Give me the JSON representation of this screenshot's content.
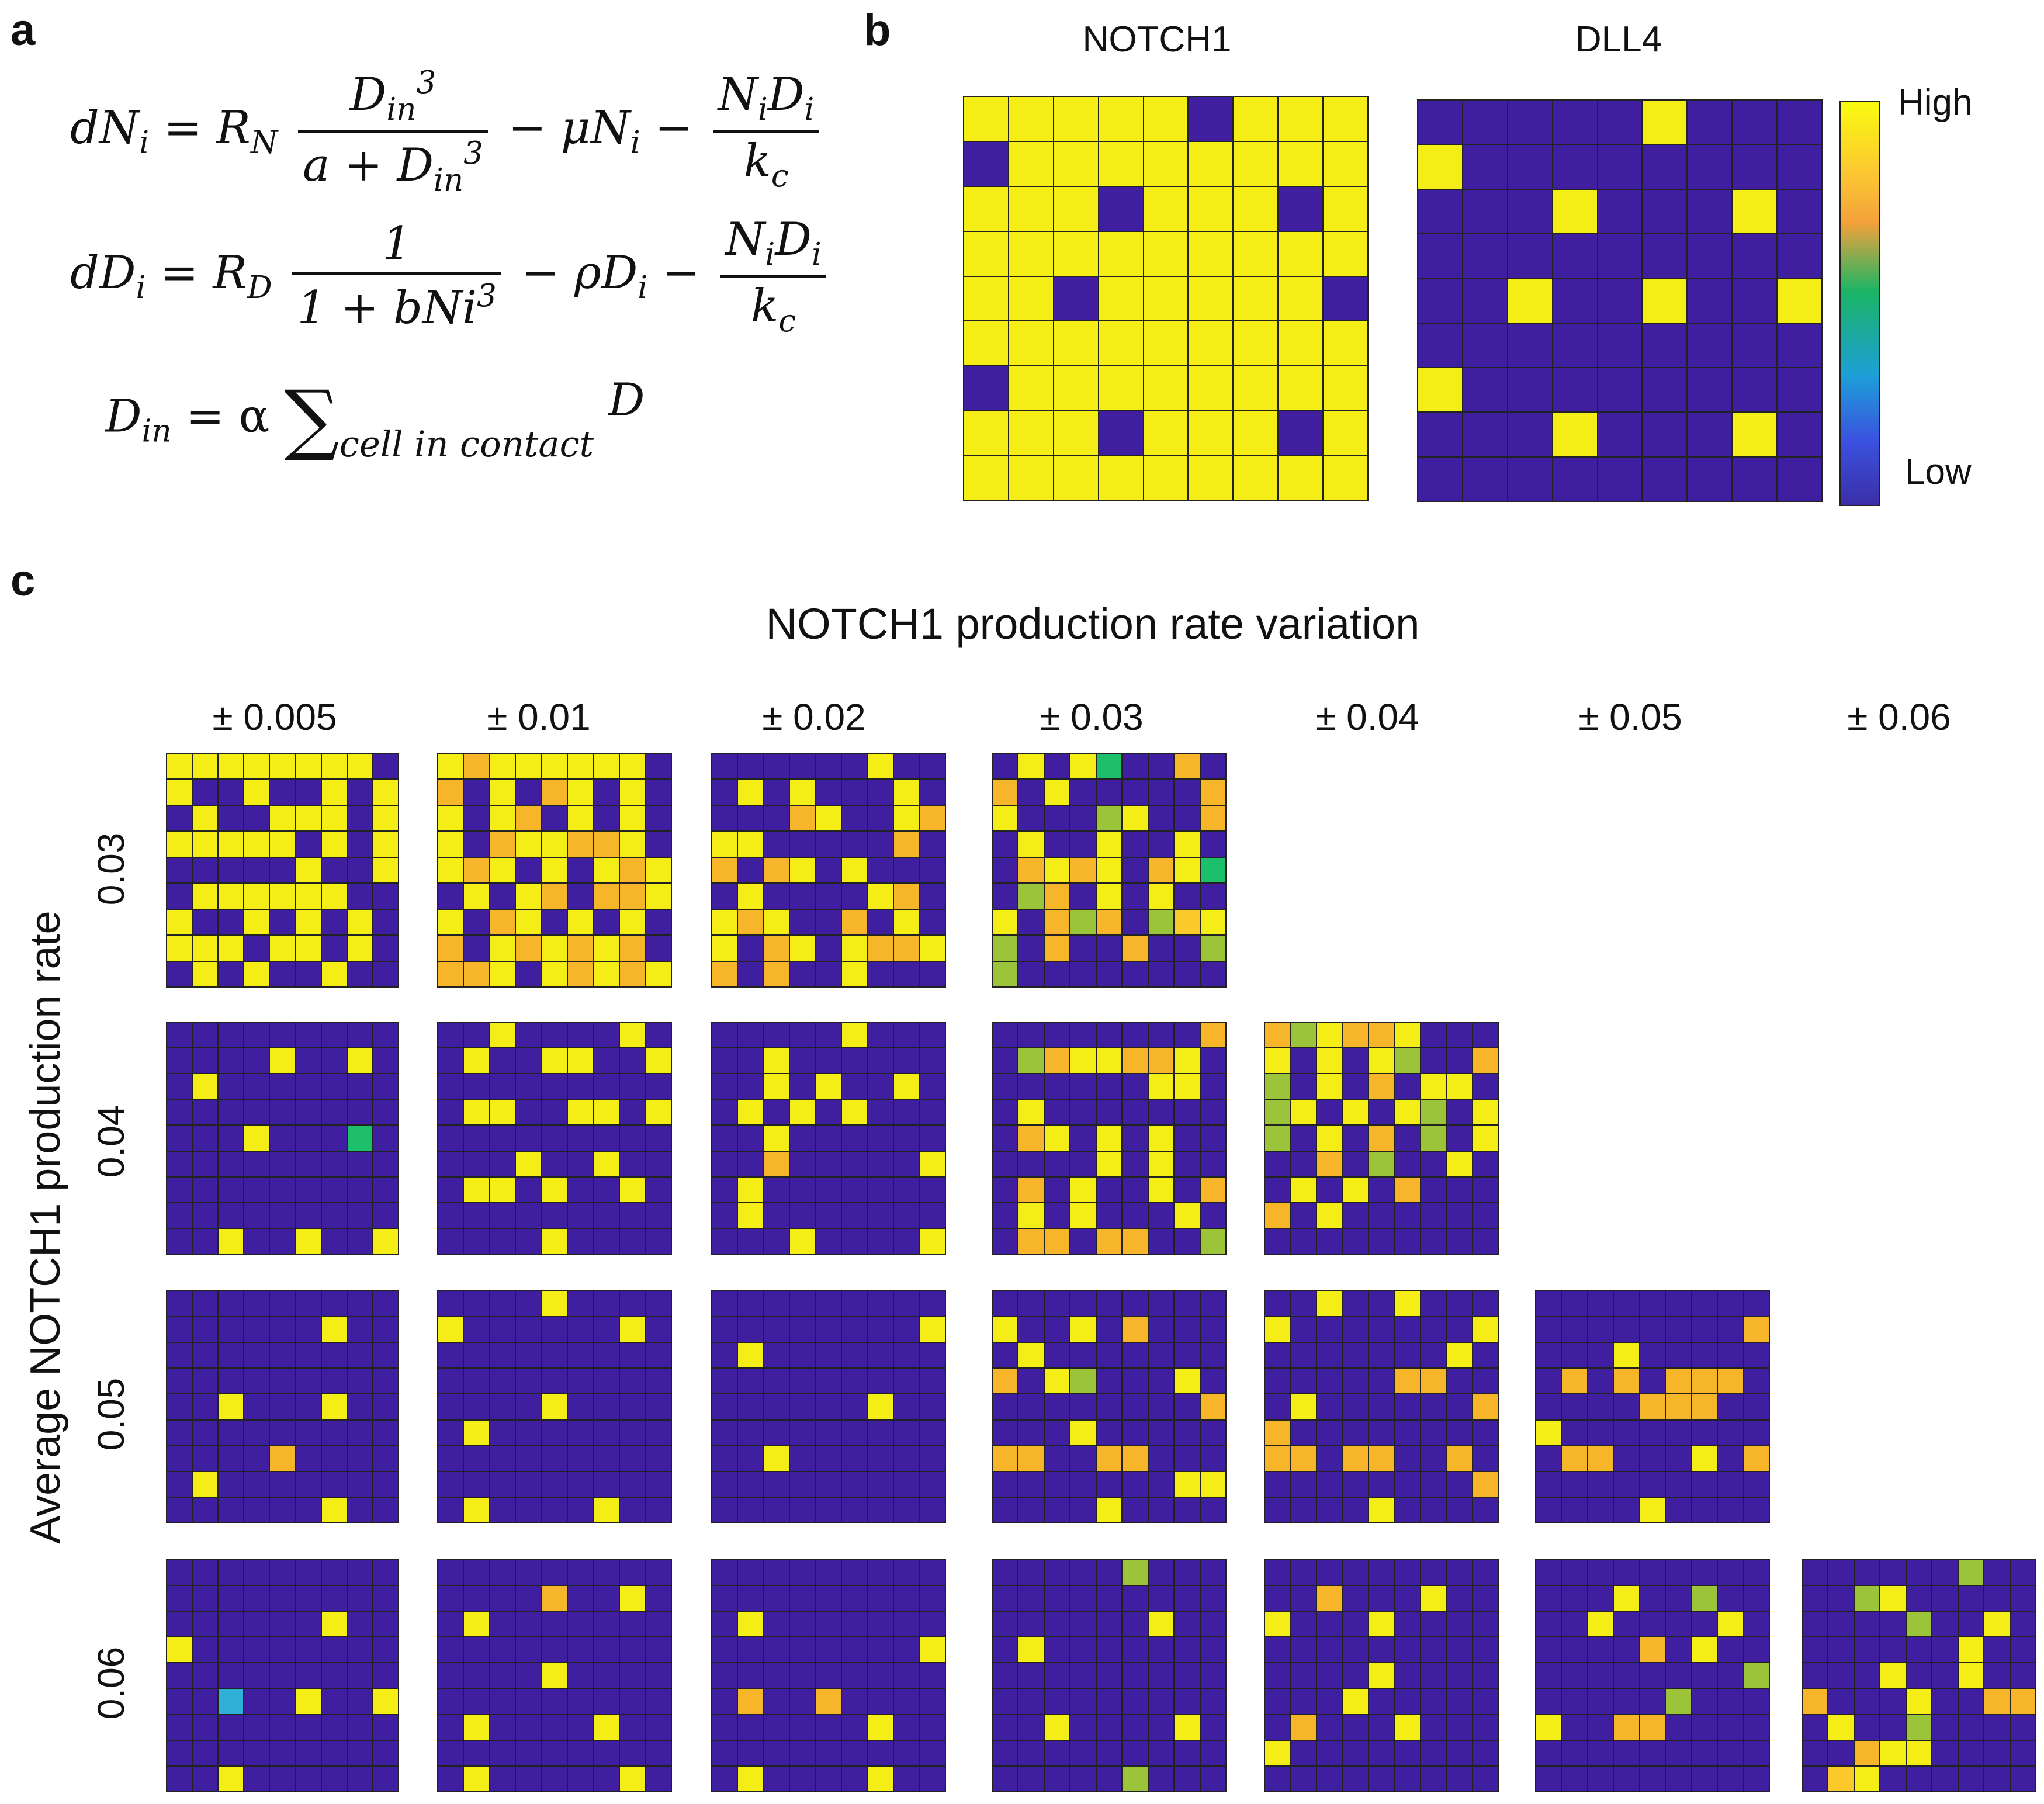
{
  "panels": {
    "a": "a",
    "b": "b",
    "c": "c"
  },
  "equations": {
    "eq1": {
      "lhs_d": "dN",
      "lhs_i": "i",
      "R": "R",
      "R_sub": "N",
      "num": "D",
      "num_sub": "in",
      "num_sup": "3",
      "den_a": "a + D",
      "den_sub": "in",
      "den_sup": "3",
      "mid": "− μN",
      "mid_sub": "i",
      "minus": "−",
      "f2_num": "N",
      "f2_num_sub1": "i",
      "f2_num_D": "D",
      "f2_num_sub2": "i",
      "f2_den": "k",
      "f2_den_sub": "c"
    },
    "eq2": {
      "lhs_d": "dD",
      "lhs_i": "i",
      "R": "R",
      "R_sub": "D",
      "num": "1",
      "den": "1 + bNi",
      "den_sup": "3",
      "mid": "− ρD",
      "mid_sub": "i",
      "minus": "−",
      "f2_num": "N",
      "f2_num_sub1": "i",
      "f2_num_D": "D",
      "f2_num_sub2": "i",
      "f2_den": "k",
      "f2_den_sub": "c"
    },
    "eq3": {
      "lhs": "D",
      "lhs_sub": "in",
      "eq": "= α",
      "sum": "∑",
      "sum_sub": "cell in contact",
      "rhs": "D"
    }
  },
  "panel_b": {
    "titles": [
      "NOTCH1",
      "DLL4"
    ],
    "colorbar": {
      "high": "High",
      "low": "Low"
    }
  },
  "panel_c": {
    "title": "NOTCH1 production rate variation",
    "y_label": "Average NOTCH1 production rate",
    "columns": [
      "± 0.005",
      "± 0.01",
      "± 0.02",
      "± 0.03",
      "± 0.04",
      "± 0.05",
      "± 0.06"
    ],
    "rows": [
      "0.03",
      "0.04",
      "0.05",
      "0.06"
    ]
  },
  "colors": {
    "Y": "#f4ee16",
    "O": "#f7b52a",
    "o": "#fbc92a",
    "G": "#1dbf6a",
    "g": "#9cc43a",
    "B": "#2fb0d6",
    "P": "#3f1f9f",
    "y": "#f2e61e"
  },
  "grids": {
    "b_notch1": [
      "YYYYYPYYY",
      "PYYYYYYYY",
      "YYYPYYYPY",
      "YYYYYYYYY",
      "YYPYYYYYP",
      "YYYYYYYYY",
      "PYYYYYYYY",
      "YYYPYYYPY",
      "YYYYYYYYY"
    ],
    "b_dll4": [
      "PPPPPYPPP",
      "YPPPPPPPP",
      "PPPYPPPYP",
      "PPPPPPPPP",
      "PPYPPYPPY",
      "PPPPPPPPP",
      "YPPPPPPPP",
      "PPPYPPPYP",
      "PPPPPPPPP"
    ],
    "r0c0": [
      "YYYYYYYYP",
      "YPPYPPYPY",
      "PYPPYYYPY",
      "YYYYYPYPY",
      "PPPPPYPPY",
      "PYYYYYYPP",
      "YPPYPYPYP",
      "YYYPYYPYP",
      "PYPYPPYPP"
    ],
    "r0c1": [
      "YOYYYYYYP",
      "OPYPOYPYP",
      "YPYOPYPYP",
      "YPOYYOOYP",
      "YOYPYPYOY",
      "PYPYOPOOY",
      "YPOYPYPYP",
      "OPYOYOYOP",
      "OOYPYOYOY"
    ],
    "r0c2": [
      "PPPPPPYPP",
      "PYPYPPPYP",
      "PPPOYPPYO",
      "YYPPPPPOP",
      "OPOYPYPPP",
      "PYPPPPYOP",
      "YOYPPOPYP",
      "YPOYPYOOY",
      "OPOPPYPPP"
    ],
    "r0c3": [
      "PYPYGPPOP",
      "OPYPPPPPO",
      "YPPPgYPPO",
      "PYPPYPPYP",
      "POYOYPOYG",
      "PgOPYPYPP",
      "YPOgOPgoY",
      "gPOPPOPPg",
      "gPPPPPPPP"
    ],
    "r1c0": [
      "PPPPPPPPP",
      "PPPPYPPYP",
      "PYPPPPPPP",
      "PPPPPPPPP",
      "PPPYPPPGP",
      "PPPPPPPPP",
      "PPPPPPPPP",
      "PPPPPPPPP",
      "PPYPPYPPY"
    ],
    "r1c1": [
      "PPYPPPPYP",
      "PYPPYYPPY",
      "PPPPPPPPP",
      "PYYPPYYPY",
      "PPPPPPPPP",
      "PPPYPPYPP",
      "PYYPYPPYP",
      "PPPPPPPPP",
      "PPPPYPPPP"
    ],
    "r1c2": [
      "PPPPPYPPP",
      "PPYPPPPPP",
      "PPYPYPPYP",
      "PYPYPYPPP",
      "PPYPPPPPP",
      "PPOPPPPPY",
      "PYPPPPPPP",
      "PYPPPPPPP",
      "PPPYPPPPY"
    ],
    "r1c3": [
      "PPPPPPPPO",
      "PgOYYOOYP",
      "PPPPPPYYP",
      "PYPPPPPPP",
      "POYPYPYPP",
      "PPPPYPYPP",
      "POPYPPYPO",
      "PYPYPPPYP",
      "POOPOOPPg"
    ],
    "r2c0": [
      "PPPPPPPPP",
      "PPPPPPYPP",
      "PPPPPPPPP",
      "PPPPPPPPP",
      "PPYPPPYPP",
      "PPPPPPPPP",
      "PPPPOPPPP",
      "PYPPPPPPP",
      "PPPPPPYPP"
    ],
    "r2c1": [
      "PPPPYPPPP",
      "YPPPPPPYP",
      "PPPPPPPPP",
      "PPPPPPPPP",
      "PPPPYPPPP",
      "PYPPPPPPP",
      "PPPPPPPPP",
      "PPPPPPPPP",
      "PYPPPPYPP"
    ],
    "r2c2": [
      "PPPPPPPPP",
      "PPPPPPPPY",
      "PYPPPPPPP",
      "PPPPPPPPP",
      "PPPPPPYPP",
      "PPPPPPPPP",
      "PPYPPPPPP",
      "PPPPPPPPP",
      "PPPPPPPPP"
    ],
    "r2c3": [
      "PPPPPPPPP",
      "YPPYPOPPP",
      "PYPPPPPPP",
      "OPYgPPPYP",
      "PPPPPPPPO",
      "PPPYPPPPP",
      "OOPPOOPPP",
      "PPPPPPPYY",
      "PPPPYPPPP"
    ]
  }
}
